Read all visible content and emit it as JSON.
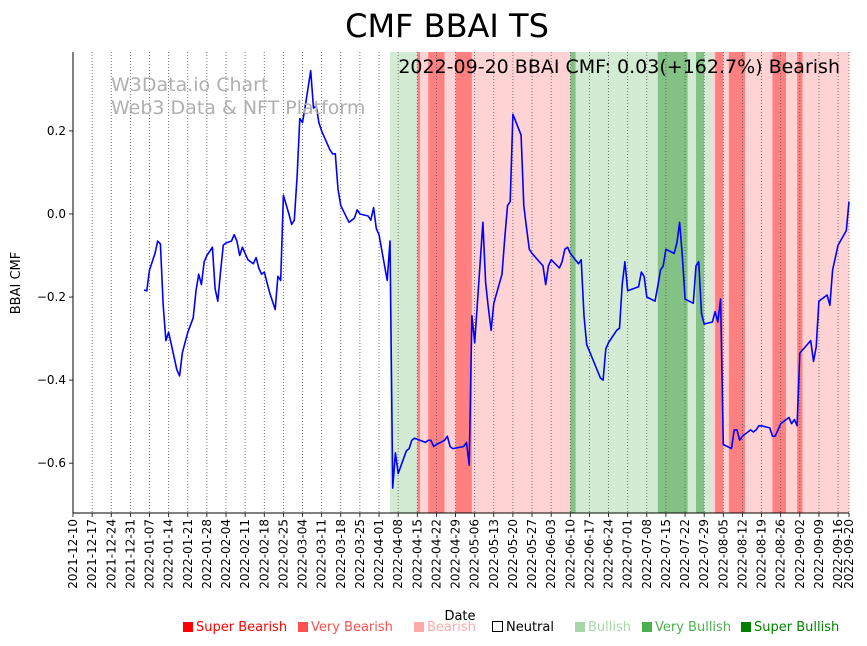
{
  "chart_data": {
    "type": "line",
    "title": "CMF BBAI TS",
    "subtitle": "2022-09-20 BBAI CMF: 0.03(+162.7%) Bearish",
    "watermark": [
      "W3Data.io Chart",
      "Web3 Data & NFT Platform"
    ],
    "xlabel": "Date",
    "ylabel": "BBAI CMF",
    "ylim": [
      -0.72,
      0.39
    ],
    "yticks": [
      0.2,
      0.0,
      -0.2,
      -0.4,
      -0.6
    ],
    "ytick_labels": [
      "0.2",
      "0.0",
      "−0.2",
      "−0.4",
      "−0.6"
    ],
    "xlim": [
      "2021-12-10",
      "2022-09-20"
    ],
    "xticks": [
      "2021-12-10",
      "2021-12-17",
      "2021-12-24",
      "2021-12-31",
      "2022-01-07",
      "2022-01-14",
      "2022-01-21",
      "2022-01-28",
      "2022-02-04",
      "2022-02-11",
      "2022-02-18",
      "2022-02-25",
      "2022-03-04",
      "2022-03-11",
      "2022-03-18",
      "2022-03-25",
      "2022-04-01",
      "2022-04-08",
      "2022-04-15",
      "2022-04-22",
      "2022-04-29",
      "2022-05-06",
      "2022-05-13",
      "2022-05-20",
      "2022-05-27",
      "2022-06-03",
      "2022-06-10",
      "2022-06-17",
      "2022-06-24",
      "2022-07-01",
      "2022-07-08",
      "2022-07-15",
      "2022-07-22",
      "2022-07-29",
      "2022-08-05",
      "2022-08-12",
      "2022-08-19",
      "2022-08-26",
      "2022-09-02",
      "2022-09-09",
      "2022-09-16",
      "2022-09-20"
    ],
    "grid": "vertical dotted at x ticks",
    "series": [
      {
        "name": "BBAI CMF",
        "color": "#0000ff",
        "points": [
          [
            "2022-01-05",
            -0.183
          ],
          [
            "2022-01-06",
            -0.185
          ],
          [
            "2022-01-07",
            -0.135
          ],
          [
            "2022-01-09",
            -0.095
          ],
          [
            "2022-01-10",
            -0.065
          ],
          [
            "2022-01-11",
            -0.072
          ],
          [
            "2022-01-12",
            -0.22
          ],
          [
            "2022-01-13",
            -0.305
          ],
          [
            "2022-01-14",
            -0.285
          ],
          [
            "2022-01-15",
            -0.315
          ],
          [
            "2022-01-17",
            -0.375
          ],
          [
            "2022-01-18",
            -0.39
          ],
          [
            "2022-01-19",
            -0.335
          ],
          [
            "2022-01-20",
            -0.31
          ],
          [
            "2022-01-21",
            -0.285
          ],
          [
            "2022-01-23",
            -0.25
          ],
          [
            "2022-01-24",
            -0.185
          ],
          [
            "2022-01-25",
            -0.145
          ],
          [
            "2022-01-26",
            -0.17
          ],
          [
            "2022-01-27",
            -0.115
          ],
          [
            "2022-01-28",
            -0.1
          ],
          [
            "2022-01-30",
            -0.08
          ],
          [
            "2022-01-31",
            -0.18
          ],
          [
            "2022-02-01",
            -0.21
          ],
          [
            "2022-02-02",
            -0.14
          ],
          [
            "2022-02-03",
            -0.075
          ],
          [
            "2022-02-04",
            -0.07
          ],
          [
            "2022-02-06",
            -0.065
          ],
          [
            "2022-02-07",
            -0.05
          ],
          [
            "2022-02-08",
            -0.065
          ],
          [
            "2022-02-09",
            -0.1
          ],
          [
            "2022-02-10",
            -0.08
          ],
          [
            "2022-02-11",
            -0.095
          ],
          [
            "2022-02-12",
            -0.11
          ],
          [
            "2022-02-14",
            -0.12
          ],
          [
            "2022-02-15",
            -0.105
          ],
          [
            "2022-02-16",
            -0.13
          ],
          [
            "2022-02-17",
            -0.145
          ],
          [
            "2022-02-18",
            -0.14
          ],
          [
            "2022-02-20",
            -0.19
          ],
          [
            "2022-02-22",
            -0.23
          ],
          [
            "2022-02-23",
            -0.15
          ],
          [
            "2022-02-24",
            -0.16
          ],
          [
            "2022-02-25",
            0.045
          ],
          [
            "2022-02-27",
            0.0
          ],
          [
            "2022-02-28",
            -0.025
          ],
          [
            "2022-03-01",
            -0.015
          ],
          [
            "2022-03-02",
            0.09
          ],
          [
            "2022-03-03",
            0.23
          ],
          [
            "2022-03-04",
            0.22
          ],
          [
            "2022-03-05",
            0.26
          ],
          [
            "2022-03-07",
            0.345
          ],
          [
            "2022-03-08",
            0.255
          ],
          [
            "2022-03-09",
            0.26
          ],
          [
            "2022-03-10",
            0.22
          ],
          [
            "2022-03-11",
            0.2
          ],
          [
            "2022-03-14",
            0.155
          ],
          [
            "2022-03-15",
            0.145
          ],
          [
            "2022-03-16",
            0.145
          ],
          [
            "2022-03-17",
            0.06
          ],
          [
            "2022-03-18",
            0.02
          ],
          [
            "2022-03-21",
            -0.02
          ],
          [
            "2022-03-22",
            -0.015
          ],
          [
            "2022-03-23",
            -0.01
          ],
          [
            "2022-03-24",
            0.01
          ],
          [
            "2022-03-25",
            0.0
          ],
          [
            "2022-03-28",
            -0.005
          ],
          [
            "2022-03-29",
            -0.015
          ],
          [
            "2022-03-30",
            0.015
          ],
          [
            "2022-03-31",
            -0.035
          ],
          [
            "2022-04-01",
            -0.05
          ],
          [
            "2022-04-04",
            -0.16
          ],
          [
            "2022-04-05",
            -0.065
          ],
          [
            "2022-04-06",
            -0.66
          ],
          [
            "2022-04-07",
            -0.575
          ],
          [
            "2022-04-08",
            -0.625
          ],
          [
            "2022-04-11",
            -0.57
          ],
          [
            "2022-04-12",
            -0.565
          ],
          [
            "2022-04-13",
            -0.545
          ],
          [
            "2022-04-14",
            -0.54
          ],
          [
            "2022-04-18",
            -0.55
          ],
          [
            "2022-04-19",
            -0.545
          ],
          [
            "2022-04-20",
            -0.545
          ],
          [
            "2022-04-21",
            -0.56
          ],
          [
            "2022-04-22",
            -0.555
          ],
          [
            "2022-04-25",
            -0.545
          ],
          [
            "2022-04-26",
            -0.535
          ],
          [
            "2022-04-27",
            -0.56
          ],
          [
            "2022-04-28",
            -0.565
          ],
          [
            "2022-05-02",
            -0.56
          ],
          [
            "2022-05-03",
            -0.55
          ],
          [
            "2022-05-04",
            -0.605
          ],
          [
            "2022-05-05",
            -0.245
          ],
          [
            "2022-05-06",
            -0.31
          ],
          [
            "2022-05-09",
            -0.02
          ],
          [
            "2022-05-10",
            -0.165
          ],
          [
            "2022-05-11",
            -0.225
          ],
          [
            "2022-05-12",
            -0.28
          ],
          [
            "2022-05-13",
            -0.215
          ],
          [
            "2022-05-16",
            -0.145
          ],
          [
            "2022-05-17",
            -0.06
          ],
          [
            "2022-05-18",
            0.02
          ],
          [
            "2022-05-19",
            0.03
          ],
          [
            "2022-05-20",
            0.24
          ],
          [
            "2022-05-23",
            0.19
          ],
          [
            "2022-05-24",
            0.02
          ],
          [
            "2022-05-25",
            -0.035
          ],
          [
            "2022-05-26",
            -0.085
          ],
          [
            "2022-05-27",
            -0.095
          ],
          [
            "2022-05-31",
            -0.125
          ],
          [
            "2022-06-01",
            -0.17
          ],
          [
            "2022-06-02",
            -0.125
          ],
          [
            "2022-06-03",
            -0.11
          ],
          [
            "2022-06-06",
            -0.13
          ],
          [
            "2022-06-07",
            -0.115
          ],
          [
            "2022-06-08",
            -0.085
          ],
          [
            "2022-06-09",
            -0.08
          ],
          [
            "2022-06-10",
            -0.095
          ],
          [
            "2022-06-13",
            -0.12
          ],
          [
            "2022-06-14",
            -0.11
          ],
          [
            "2022-06-15",
            -0.245
          ],
          [
            "2022-06-16",
            -0.315
          ],
          [
            "2022-06-17",
            -0.33
          ],
          [
            "2022-06-21",
            -0.395
          ],
          [
            "2022-06-22",
            -0.4
          ],
          [
            "2022-06-23",
            -0.325
          ],
          [
            "2022-06-24",
            -0.31
          ],
          [
            "2022-06-27",
            -0.28
          ],
          [
            "2022-06-28",
            -0.275
          ],
          [
            "2022-06-29",
            -0.17
          ],
          [
            "2022-06-30",
            -0.115
          ],
          [
            "2022-07-01",
            -0.185
          ],
          [
            "2022-07-05",
            -0.175
          ],
          [
            "2022-07-06",
            -0.14
          ],
          [
            "2022-07-07",
            -0.15
          ],
          [
            "2022-07-08",
            -0.2
          ],
          [
            "2022-07-11",
            -0.21
          ],
          [
            "2022-07-12",
            -0.175
          ],
          [
            "2022-07-13",
            -0.135
          ],
          [
            "2022-07-14",
            -0.125
          ],
          [
            "2022-07-15",
            -0.085
          ],
          [
            "2022-07-18",
            -0.095
          ],
          [
            "2022-07-19",
            -0.07
          ],
          [
            "2022-07-20",
            -0.02
          ],
          [
            "2022-07-21",
            -0.1
          ],
          [
            "2022-07-22",
            -0.205
          ],
          [
            "2022-07-25",
            -0.215
          ],
          [
            "2022-07-26",
            -0.125
          ],
          [
            "2022-07-27",
            -0.115
          ],
          [
            "2022-07-28",
            -0.24
          ],
          [
            "2022-07-29",
            -0.265
          ],
          [
            "2022-08-01",
            -0.26
          ],
          [
            "2022-08-02",
            -0.235
          ],
          [
            "2022-08-03",
            -0.26
          ],
          [
            "2022-08-04",
            -0.205
          ],
          [
            "2022-08-05",
            -0.555
          ],
          [
            "2022-08-08",
            -0.565
          ],
          [
            "2022-08-09",
            -0.52
          ],
          [
            "2022-08-10",
            -0.52
          ],
          [
            "2022-08-11",
            -0.545
          ],
          [
            "2022-08-12",
            -0.535
          ],
          [
            "2022-08-15",
            -0.52
          ],
          [
            "2022-08-16",
            -0.525
          ],
          [
            "2022-08-17",
            -0.52
          ],
          [
            "2022-08-18",
            -0.51
          ],
          [
            "2022-08-19",
            -0.51
          ],
          [
            "2022-08-22",
            -0.515
          ],
          [
            "2022-08-23",
            -0.535
          ],
          [
            "2022-08-24",
            -0.535
          ],
          [
            "2022-08-25",
            -0.52
          ],
          [
            "2022-08-26",
            -0.505
          ],
          [
            "2022-08-29",
            -0.49
          ],
          [
            "2022-08-30",
            -0.505
          ],
          [
            "2022-08-31",
            -0.495
          ],
          [
            "2022-09-01",
            -0.51
          ],
          [
            "2022-09-02",
            -0.335
          ],
          [
            "2022-09-06",
            -0.305
          ],
          [
            "2022-09-07",
            -0.355
          ],
          [
            "2022-09-08",
            -0.32
          ],
          [
            "2022-09-09",
            -0.21
          ],
          [
            "2022-09-12",
            -0.195
          ],
          [
            "2022-09-13",
            -0.22
          ],
          [
            "2022-09-14",
            -0.135
          ],
          [
            "2022-09-16",
            -0.075
          ],
          [
            "2022-09-19",
            -0.04
          ],
          [
            "2022-09-20",
            0.03
          ]
        ]
      }
    ],
    "signal_bands": [
      {
        "start": "2022-04-05",
        "end": "2022-04-15",
        "signal": "Bullish"
      },
      {
        "start": "2022-04-15",
        "end": "2022-04-16",
        "signal": "Very Bearish"
      },
      {
        "start": "2022-04-16",
        "end": "2022-04-19",
        "signal": "Bearish"
      },
      {
        "start": "2022-04-19",
        "end": "2022-04-25",
        "signal": "Very Bearish"
      },
      {
        "start": "2022-04-25",
        "end": "2022-04-29",
        "signal": "Bearish"
      },
      {
        "start": "2022-04-29",
        "end": "2022-05-05",
        "signal": "Very Bearish"
      },
      {
        "start": "2022-05-05",
        "end": "2022-06-10",
        "signal": "Bearish"
      },
      {
        "start": "2022-06-10",
        "end": "2022-06-12",
        "signal": "Very Bullish"
      },
      {
        "start": "2022-06-12",
        "end": "2022-07-12",
        "signal": "Bullish"
      },
      {
        "start": "2022-07-12",
        "end": "2022-07-23",
        "signal": "Very Bullish"
      },
      {
        "start": "2022-07-23",
        "end": "2022-07-26",
        "signal": "Bullish"
      },
      {
        "start": "2022-07-26",
        "end": "2022-07-29",
        "signal": "Very Bullish"
      },
      {
        "start": "2022-07-29",
        "end": "2022-08-01",
        "signal": "Bullish"
      },
      {
        "start": "2022-08-01",
        "end": "2022-08-02",
        "signal": "Bearish"
      },
      {
        "start": "2022-08-02",
        "end": "2022-08-05",
        "signal": "Very Bearish"
      },
      {
        "start": "2022-08-05",
        "end": "2022-08-07",
        "signal": "Bearish"
      },
      {
        "start": "2022-08-07",
        "end": "2022-08-13",
        "signal": "Very Bearish"
      },
      {
        "start": "2022-08-13",
        "end": "2022-08-23",
        "signal": "Bearish"
      },
      {
        "start": "2022-08-23",
        "end": "2022-08-28",
        "signal": "Very Bearish"
      },
      {
        "start": "2022-08-28",
        "end": "2022-09-01",
        "signal": "Bearish"
      },
      {
        "start": "2022-09-01",
        "end": "2022-09-03",
        "signal": "Very Bearish"
      },
      {
        "start": "2022-09-03",
        "end": "2022-09-20",
        "signal": "Bearish"
      }
    ],
    "legend": [
      {
        "label": "Super Bearish",
        "color": "#ff0000",
        "text_color": "#ff0000"
      },
      {
        "label": "Very Bearish",
        "color": "#ff5050",
        "text_color": "#ff5050"
      },
      {
        "label": "Bearish",
        "color": "#ffaaaa",
        "text_color": "#ffaaaa"
      },
      {
        "label": "Neutral",
        "color": "#ffffff",
        "text_color": "#000000"
      },
      {
        "label": "Bullish",
        "color": "#a8d8a8",
        "text_color": "#a8d8a8"
      },
      {
        "label": "Very Bullish",
        "color": "#4caf50",
        "text_color": "#4caf50"
      },
      {
        "label": "Super Bullish",
        "color": "#008000",
        "text_color": "#008000"
      }
    ],
    "band_colors": {
      "Super Bearish": "#ff0000",
      "Very Bearish": "#ff8080",
      "Bearish": "#ffd3d3",
      "Neutral": "#ffffff",
      "Bullish": "#d3ebd3",
      "Very Bullish": "#84c184",
      "Super Bullish": "#008000"
    }
  }
}
